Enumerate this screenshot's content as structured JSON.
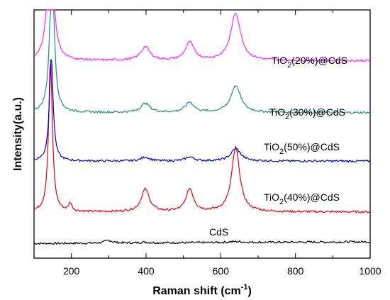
{
  "chart_data": {
    "type": "line",
    "xlabel": "Raman shift (cm",
    "xlabel_sup": "-1",
    "xlabel_close": ")",
    "ylabel": "Intensity(a.u.)",
    "xlim": [
      100,
      1000
    ],
    "x_ticks": [
      200,
      400,
      600,
      800,
      1000
    ],
    "y_ticks_shown": false,
    "grid": false,
    "legend": "inline labels right of curves",
    "series": [
      {
        "label_main": "CdS",
        "label_sub": "",
        "label_rest": "",
        "color": "#000000",
        "baseline": 0.3,
        "slope": 0.15,
        "peaks": [
          [
            300,
            0.25,
            12
          ],
          [
            395,
            0.06,
            15
          ],
          [
            640,
            0.08,
            25
          ]
        ]
      },
      {
        "label_main": "TiO",
        "label_sub": "2",
        "label_rest": "(40%)@CdS",
        "color": "#e8000b",
        "baseline": 3.1,
        "slope": 0.0,
        "peaks": [
          [
            144,
            13.5,
            6
          ],
          [
            197,
            0.7,
            5
          ],
          [
            398,
            2.0,
            13
          ],
          [
            517,
            2.0,
            12
          ],
          [
            640,
            5.7,
            13
          ]
        ]
      },
      {
        "label_main": "TiO",
        "label_sub": "2",
        "label_rest": "(50%)@CdS",
        "color": "#0000cc",
        "baseline": 7.6,
        "slope": 0.0,
        "peaks": [
          [
            146,
            9.3,
            6
          ],
          [
            398,
            0.35,
            14
          ],
          [
            517,
            0.35,
            14
          ],
          [
            640,
            1.1,
            16
          ]
        ]
      },
      {
        "label_main": "TiO",
        "label_sub": "2",
        "label_rest": "(30%)@CdS",
        "color": "#1f8c80",
        "baseline": 11.9,
        "slope": 0.0,
        "peaks": [
          [
            148,
            13.5,
            7
          ],
          [
            398,
            0.8,
            15
          ],
          [
            517,
            0.9,
            14
          ],
          [
            640,
            2.4,
            16
          ]
        ]
      },
      {
        "label_main": "TiO",
        "label_sub": "2",
        "label_rest": "(20%)@CdS",
        "color": "#ff22ff",
        "baseline": 16.5,
        "slope": 0.0,
        "peaks": [
          [
            144,
            14.5,
            8
          ],
          [
            398,
            1.2,
            15
          ],
          [
            517,
            1.6,
            14
          ],
          [
            640,
            4.2,
            16
          ]
        ]
      }
    ]
  }
}
